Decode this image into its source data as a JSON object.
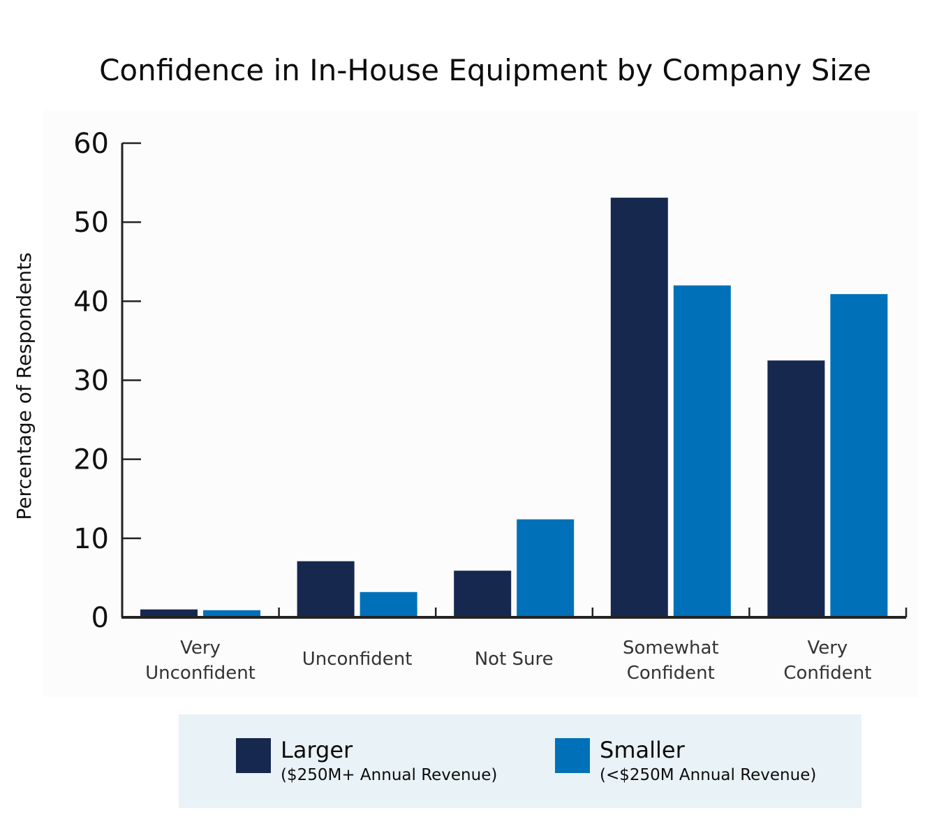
{
  "chart_data": {
    "type": "bar",
    "title": "Confidence in In-House Equipment by Company Size",
    "xlabel": "",
    "ylabel": "Percentage of Respondents",
    "ylim": [
      0,
      60
    ],
    "yticks": [
      0,
      10,
      20,
      30,
      40,
      50,
      60
    ],
    "grid": false,
    "categories": [
      [
        "Very",
        "Unconfident"
      ],
      [
        "Unconfident"
      ],
      [
        "Not Sure"
      ],
      [
        "Somewhat",
        "Confident"
      ],
      [
        "Very",
        "Confident"
      ]
    ],
    "series": [
      {
        "name": "Larger",
        "description": "($250M+ Annual Revenue)",
        "color": "#17284f",
        "values": [
          1.0,
          7.1,
          5.9,
          53.1,
          32.5
        ]
      },
      {
        "name": "Smaller",
        "description": "(<$250M Annual Revenue)",
        "color": "#0071b9",
        "values": [
          0.9,
          3.2,
          12.4,
          42.0,
          40.9
        ]
      }
    ],
    "legend_position": "bottom"
  },
  "legend_background": "#e9f2f6",
  "axis_color": "#222222"
}
